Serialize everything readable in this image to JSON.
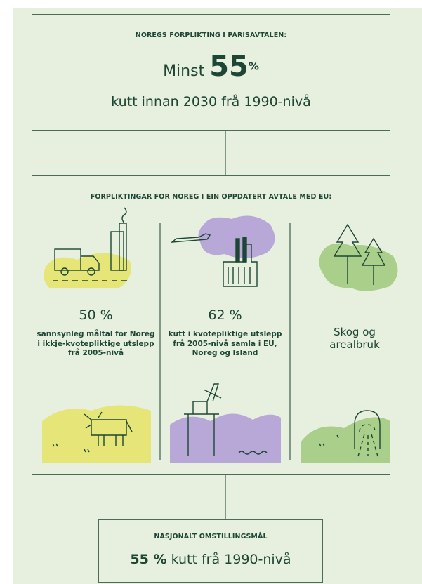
{
  "top": {
    "heading": "NOREGS FORPLIKTING I PARISAVTALEN:",
    "prefix": "Minst",
    "number": "55",
    "unit": "%",
    "text": "kutt innan 2030 frå 1990-nivå"
  },
  "middle": {
    "heading": "FORPLIKTINGAR FOR NOREG I EIN OPPDATERT AVTALE MED EU:",
    "columns": [
      {
        "figure": "50 %",
        "text": "sannsynleg måltal for Noreg i ikkje-kvotepliktige utslepp frå 2005-nivå"
      },
      {
        "figure": "62 %",
        "text": "kutt i kvotepliktige utslepp frå 2005-nivå samla i EU, Noreg og Island"
      },
      {
        "text": "Skog og arealbruk"
      }
    ]
  },
  "bottom": {
    "heading": "NASJONALT OMSTILLINGSMÅL",
    "figure": "55 %",
    "text": "kutt frå 1990-nivå"
  }
}
